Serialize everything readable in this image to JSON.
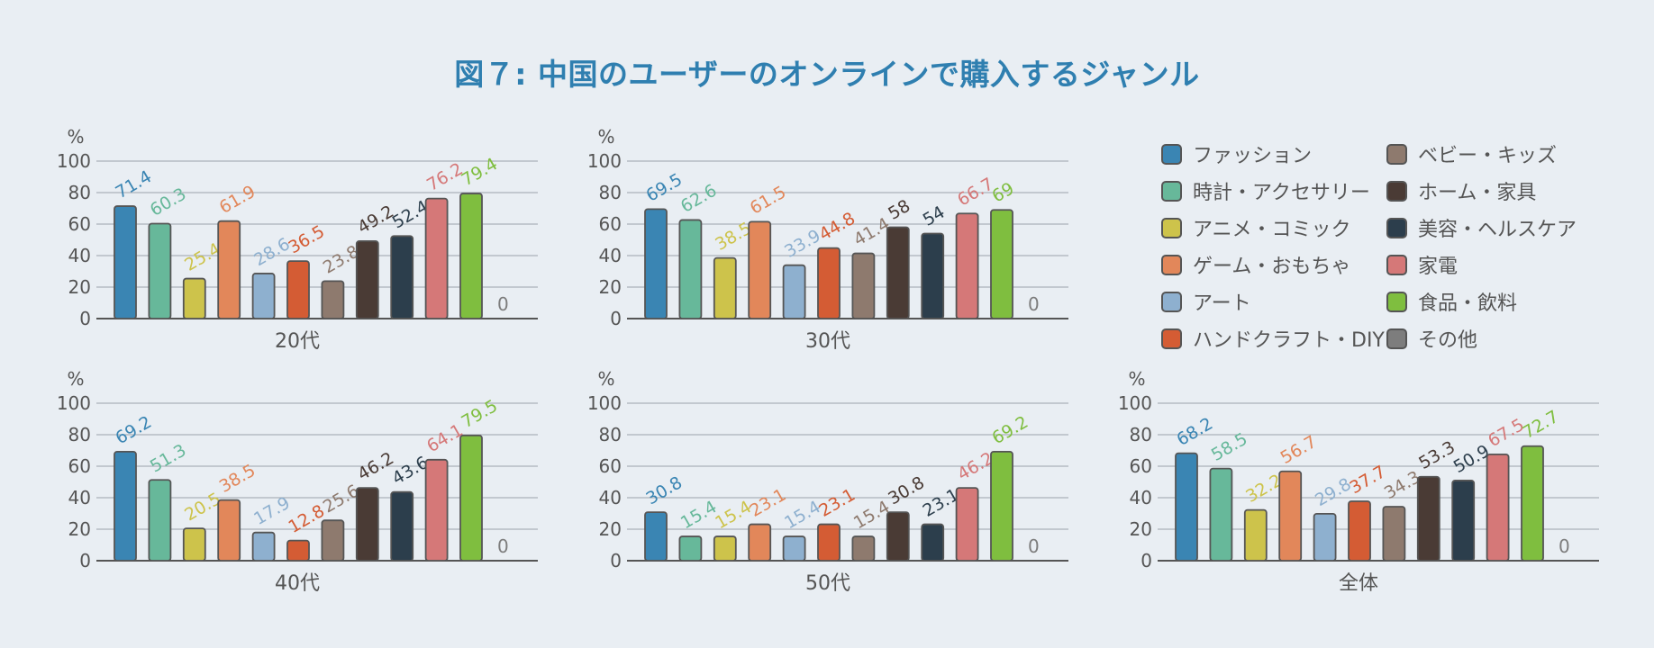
{
  "title": "図７: 中国のユーザーのオンラインで購入するジャンル",
  "chart_data": [
    {
      "type": "bar",
      "title": "20代",
      "unit": "%",
      "categories": [
        "ファッション",
        "時計・アクセサリー",
        "アニメ・コミック",
        "ゲーム・おもちゃ",
        "アート",
        "ハンドクラフト・DIY",
        "ベビー・キッズ",
        "ホーム・家具",
        "美容・ヘルスケア",
        "家電",
        "食品・飲料",
        "その他"
      ],
      "values": [
        71.4,
        60.3,
        25.4,
        61.9,
        28.6,
        36.5,
        23.8,
        49.2,
        52.4,
        76.2,
        79.4,
        0
      ],
      "data_labels": [
        "71.4",
        "60.3",
        "25.4",
        "61.9",
        "28.6",
        "36.5",
        "23.8",
        "49.2",
        "52.4",
        "76.2",
        "79.4",
        "0"
      ],
      "ylim": [
        0,
        100
      ],
      "yticks": [
        "0",
        "20",
        "40",
        "60",
        "80",
        "100"
      ]
    },
    {
      "type": "bar",
      "title": "30代",
      "unit": "%",
      "categories": [
        "ファッション",
        "時計・アクセサリー",
        "アニメ・コミック",
        "ゲーム・おもちゃ",
        "アート",
        "ハンドクラフト・DIY",
        "ベビー・キッズ",
        "ホーム・家具",
        "美容・ヘルスケア",
        "家電",
        "食品・飲料",
        "その他"
      ],
      "values": [
        69.5,
        62.6,
        38.5,
        61.5,
        33.9,
        44.8,
        41.4,
        58,
        54,
        66.7,
        69,
        0
      ],
      "data_labels": [
        "69.5",
        "62.6",
        "38.5",
        "61.5",
        "33.9",
        "44.8",
        "41.4",
        "58",
        "54",
        "66.7",
        "69",
        "0"
      ],
      "ylim": [
        0,
        100
      ],
      "yticks": [
        "0",
        "20",
        "40",
        "60",
        "80",
        "100"
      ]
    },
    {
      "type": "bar",
      "title": "40代",
      "unit": "%",
      "categories": [
        "ファッション",
        "時計・アクセサリー",
        "アニメ・コミック",
        "ゲーム・おもちゃ",
        "アート",
        "ハンドクラフト・DIY",
        "ベビー・キッズ",
        "ホーム・家具",
        "美容・ヘルスケア",
        "家電",
        "食品・飲料",
        "その他"
      ],
      "values": [
        69.2,
        51.3,
        20.5,
        38.5,
        17.9,
        12.8,
        25.6,
        46.2,
        43.6,
        64.1,
        79.5,
        0
      ],
      "data_labels": [
        "69.2",
        "51.3",
        "20.5",
        "38.5",
        "17.9",
        "12.8",
        "25.6",
        "46.2",
        "43.6",
        "64.1",
        "79.5",
        "0"
      ],
      "ylim": [
        0,
        100
      ],
      "yticks": [
        "0",
        "20",
        "40",
        "60",
        "80",
        "100"
      ]
    },
    {
      "type": "bar",
      "title": "50代",
      "unit": "%",
      "categories": [
        "ファッション",
        "時計・アクセサリー",
        "アニメ・コミック",
        "ゲーム・おもちゃ",
        "アート",
        "ハンドクラフト・DIY",
        "ベビー・キッズ",
        "ホーム・家具",
        "美容・ヘルスケア",
        "家電",
        "食品・飲料",
        "その他"
      ],
      "values": [
        30.8,
        15.4,
        15.4,
        23.1,
        15.4,
        23.1,
        15.4,
        30.8,
        23.1,
        46.2,
        69.2,
        0
      ],
      "data_labels": [
        "30.8",
        "15.4",
        "15.4",
        "23.1",
        "15.4",
        "23.1",
        "15.4",
        "30.8",
        "23.1",
        "46.2",
        "69.2",
        "0"
      ],
      "ylim": [
        0,
        100
      ],
      "yticks": [
        "0",
        "20",
        "40",
        "60",
        "80",
        "100"
      ]
    },
    {
      "type": "bar",
      "title": "全体",
      "unit": "%",
      "categories": [
        "ファッション",
        "時計・アクセサリー",
        "アニメ・コミック",
        "ゲーム・おもちゃ",
        "アート",
        "ハンドクラフト・DIY",
        "ベビー・キッズ",
        "ホーム・家具",
        "美容・ヘルスケア",
        "家電",
        "食品・飲料",
        "その他"
      ],
      "values": [
        68.2,
        58.5,
        32.2,
        56.7,
        29.8,
        37.7,
        34.3,
        53.3,
        50.9,
        67.5,
        72.7,
        0
      ],
      "data_labels": [
        "68.2",
        "58.5",
        "32.2",
        "56.7",
        "29.8",
        "37.7",
        "34.3",
        "53.3",
        "50.9",
        "67.5",
        "72.7",
        "0"
      ],
      "ylim": [
        0,
        100
      ],
      "yticks": [
        "0",
        "20",
        "40",
        "60",
        "80",
        "100"
      ]
    }
  ],
  "legend": [
    {
      "label": "ファッション",
      "color": "#3a85b3"
    },
    {
      "label": "時計・アクセサリー",
      "color": "#67b89a"
    },
    {
      "label": "アニメ・コミック",
      "color": "#cdc34b"
    },
    {
      "label": "ゲーム・おもちゃ",
      "color": "#e2875a"
    },
    {
      "label": "アート",
      "color": "#8eb0cf"
    },
    {
      "label": "ハンドクラフト・DIY",
      "color": "#d45c34"
    },
    {
      "label": "ベビー・キッズ",
      "color": "#8e7a6e"
    },
    {
      "label": "ホーム・家具",
      "color": "#4a3b35"
    },
    {
      "label": "美容・ヘルスケア",
      "color": "#2c3e4c"
    },
    {
      "label": "家電",
      "color": "#d57878"
    },
    {
      "label": "食品・飲料",
      "color": "#7fbe3f"
    },
    {
      "label": "その他",
      "color": "#7d7d7d"
    }
  ],
  "colors": {
    "title": "#2f7fb0",
    "axis_text": "#555555",
    "grid": "#9aa3ab",
    "bar_outline": "#555555",
    "background": "#e9eef3"
  }
}
